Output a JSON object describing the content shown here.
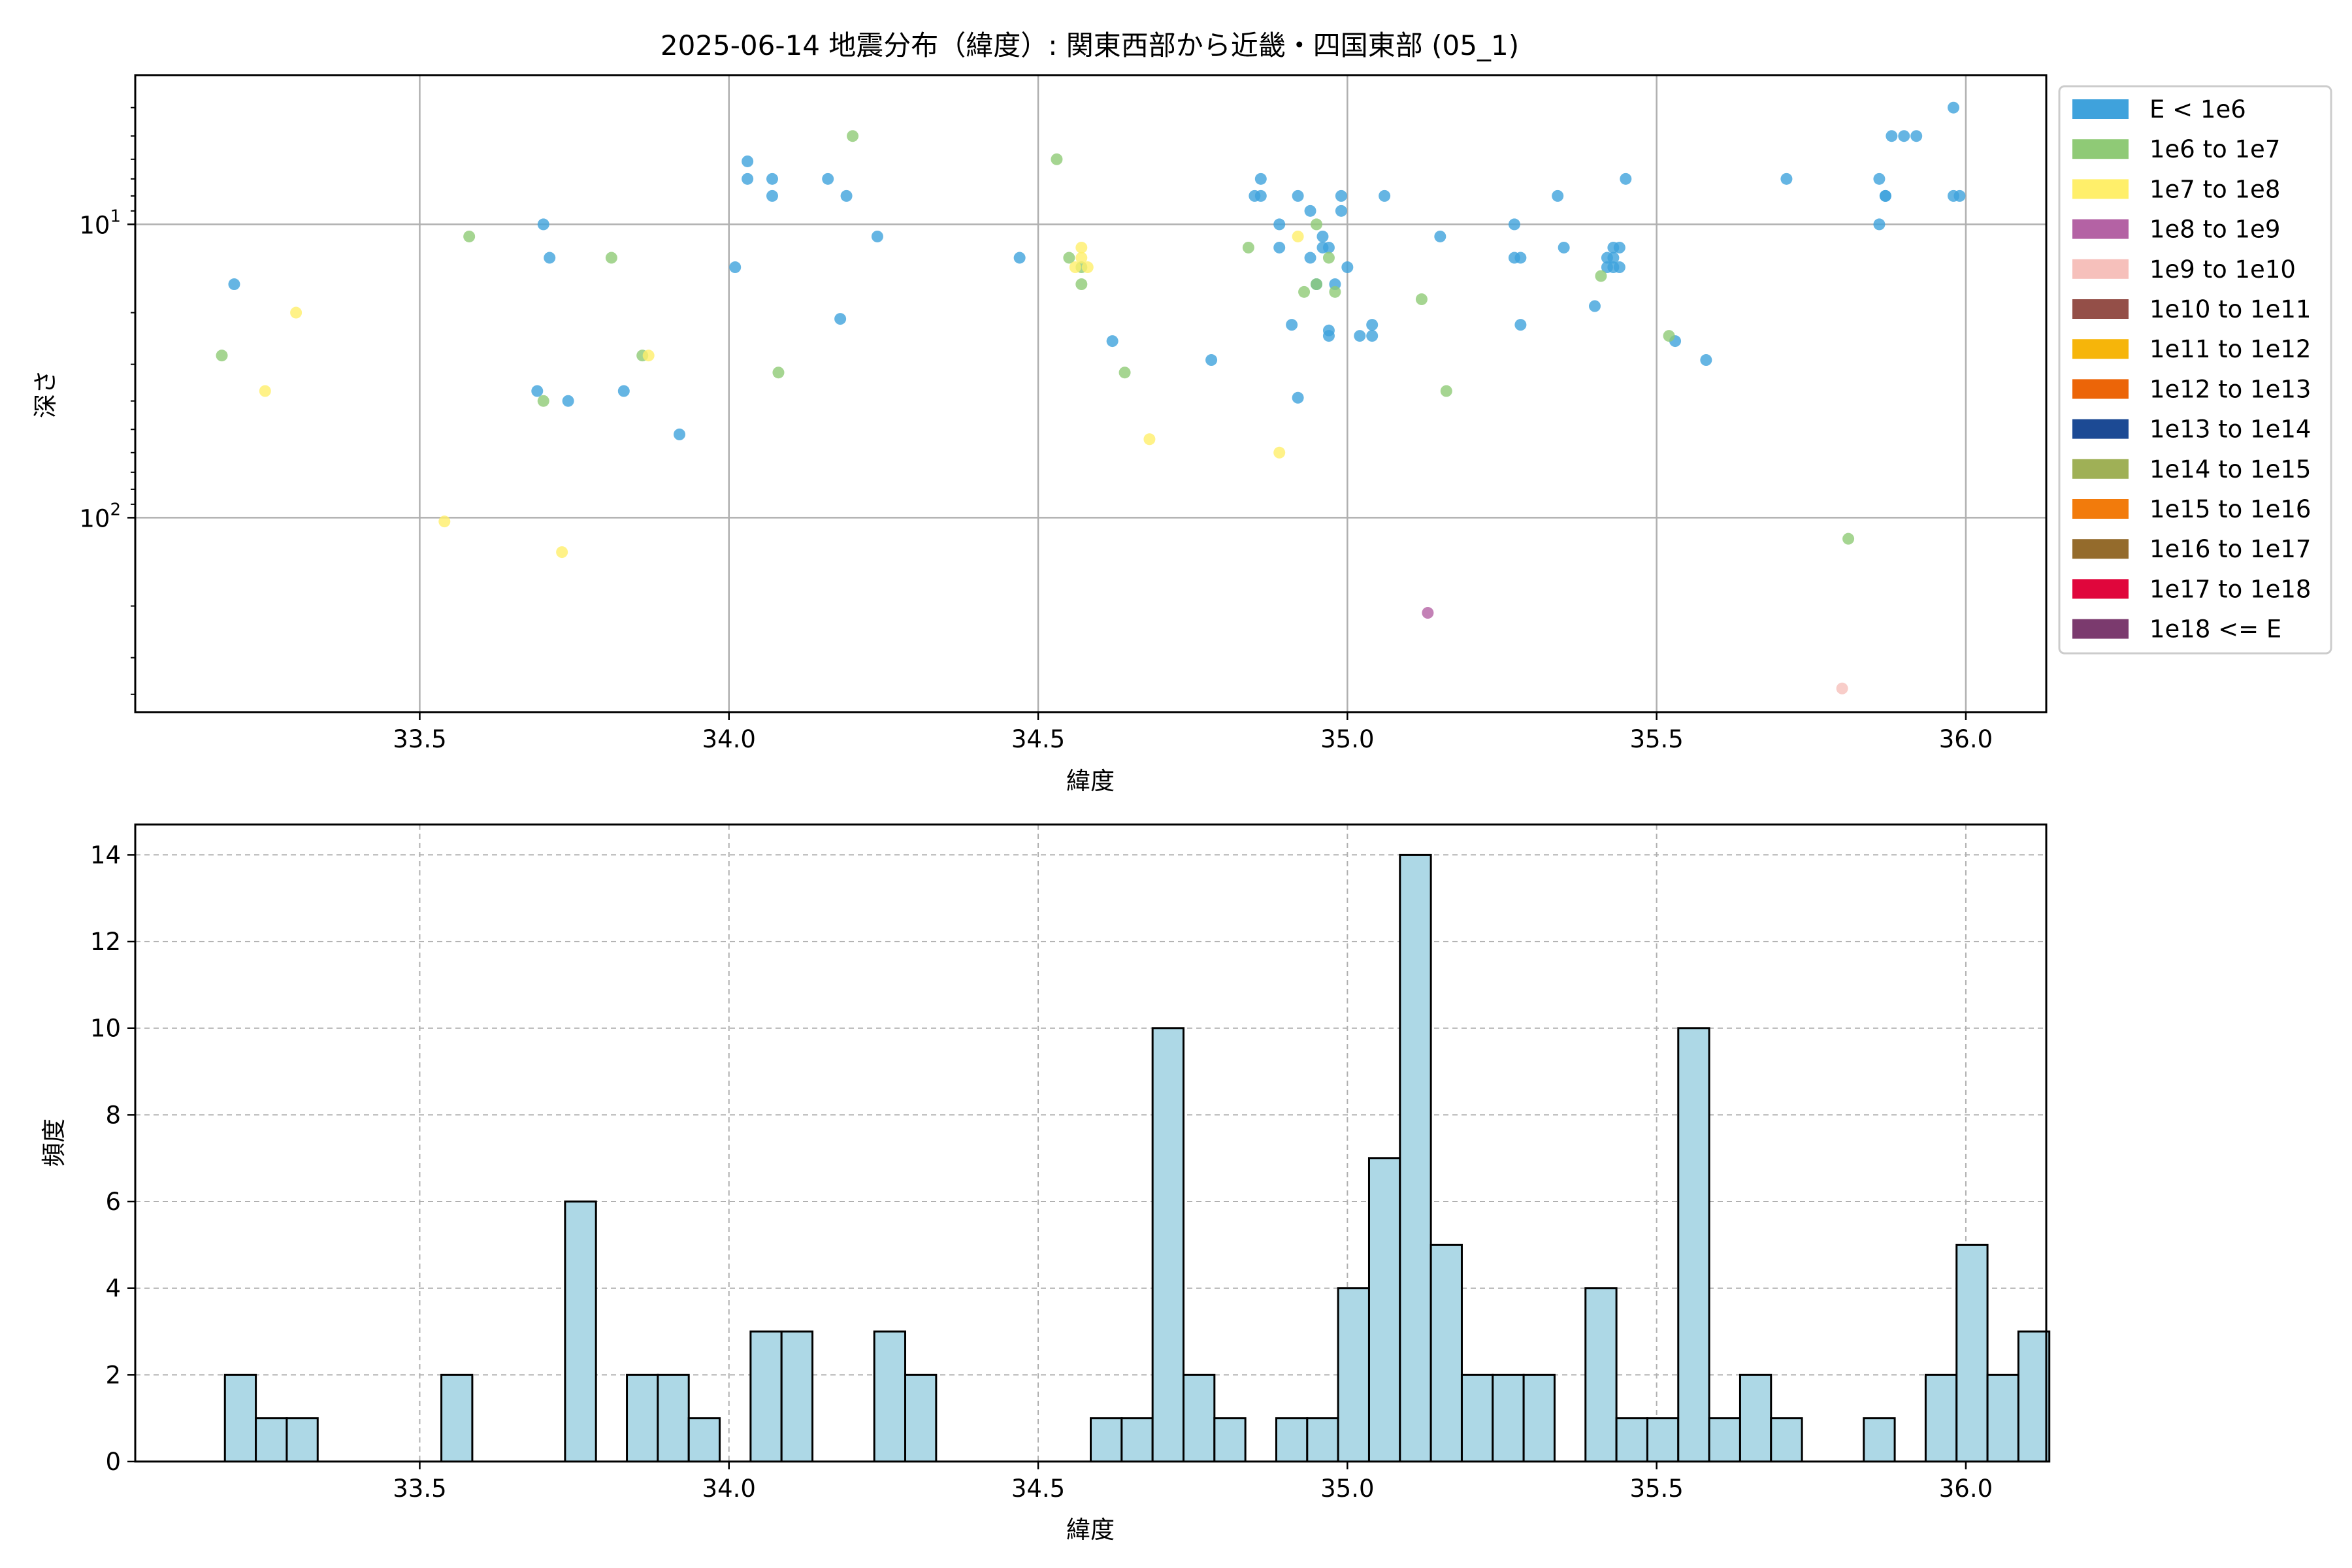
{
  "title": "2025-06-14 地震分布（緯度）: 関東西部から近畿・四国東部 (05_1)",
  "chart_data": [
    {
      "type": "scatter",
      "title": "2025-06-14 地震分布（緯度）: 関東西部から近畿・四国東部 (05_1)",
      "xlabel": "緯度",
      "ylabel": "深さ",
      "xlim": [
        33.04,
        36.13
      ],
      "ylim": [
        460,
        3.1
      ],
      "y_scale": "log",
      "y_inverted": true,
      "grid": true,
      "legend_position": "outside-right",
      "x_ticks": [
        "33.5",
        "34.0",
        "34.5",
        "35.0",
        "35.5",
        "36.0"
      ],
      "y_ticks": [
        {
          "value": 10,
          "base": "10",
          "exp": "1"
        },
        {
          "value": 100,
          "base": "10",
          "exp": "2"
        }
      ],
      "legend": [
        {
          "label": "E < 1e6",
          "color": "#3fa2dc"
        },
        {
          "label": "1e6 to 1e7",
          "color": "#8fca76"
        },
        {
          "label": "1e7 to 1e8",
          "color": "#ffef6a"
        },
        {
          "label": "1e8 to 1e9",
          "color": "#b462a4"
        },
        {
          "label": "1e9 to 1e10",
          "color": "#f6c0bb"
        },
        {
          "label": "1e10 to 1e11",
          "color": "#944f48"
        },
        {
          "label": "1e11 to 1e12",
          "color": "#f6b50a"
        },
        {
          "label": "1e12 to 1e13",
          "color": "#ec6508"
        },
        {
          "label": "1e13 to 1e14",
          "color": "#1c4a94"
        },
        {
          "label": "1e14 to 1e15",
          "color": "#9fb056"
        },
        {
          "label": "1e15 to 1e16",
          "color": "#f27b0c"
        },
        {
          "label": "1e16 to 1e17",
          "color": "#946b2c"
        },
        {
          "label": "1e17 to 1e18",
          "color": "#e0063c"
        },
        {
          "label": "1e18 <= E",
          "color": "#7b3a6e"
        }
      ],
      "series": [
        {
          "class": 0,
          "points": [
            [
              33.2,
              16
            ],
            [
              33.7,
              10
            ],
            [
              33.71,
              13
            ],
            [
              33.69,
              37
            ],
            [
              33.74,
              40
            ],
            [
              33.83,
              37
            ],
            [
              33.92,
              52
            ],
            [
              34.01,
              14
            ],
            [
              34.03,
              6.1
            ],
            [
              34.03,
              7.0
            ],
            [
              34.07,
              7.0
            ],
            [
              34.07,
              8.0
            ],
            [
              34.16,
              7.0
            ],
            [
              34.19,
              8.0
            ],
            [
              34.18,
              21
            ],
            [
              34.24,
              11
            ],
            [
              34.47,
              13
            ],
            [
              34.62,
              25
            ],
            [
              34.78,
              29
            ],
            [
              34.85,
              8.0
            ],
            [
              34.86,
              8.0
            ],
            [
              34.86,
              7.0
            ],
            [
              34.89,
              12
            ],
            [
              34.89,
              10
            ],
            [
              34.91,
              22
            ],
            [
              34.92,
              8.0
            ],
            [
              34.92,
              39
            ],
            [
              34.94,
              9.0
            ],
            [
              34.94,
              13
            ],
            [
              34.95,
              16
            ],
            [
              34.96,
              11
            ],
            [
              34.96,
              12
            ],
            [
              34.97,
              12
            ],
            [
              34.97,
              23
            ],
            [
              34.98,
              16
            ],
            [
              34.97,
              24
            ],
            [
              34.99,
              9.0
            ],
            [
              34.99,
              8.0
            ],
            [
              35.0,
              14
            ],
            [
              35.02,
              24
            ],
            [
              35.04,
              24
            ],
            [
              35.04,
              22
            ],
            [
              35.06,
              8.0
            ],
            [
              35.15,
              11
            ],
            [
              35.27,
              10
            ],
            [
              35.27,
              13
            ],
            [
              35.28,
              13
            ],
            [
              35.28,
              22
            ],
            [
              35.34,
              8.0
            ],
            [
              35.35,
              12
            ],
            [
              35.4,
              19
            ],
            [
              35.42,
              14
            ],
            [
              35.43,
              14
            ],
            [
              35.42,
              13
            ],
            [
              35.43,
              12
            ],
            [
              35.43,
              13
            ],
            [
              35.44,
              12
            ],
            [
              35.44,
              14
            ],
            [
              35.45,
              7.0
            ],
            [
              35.53,
              25
            ],
            [
              35.58,
              29
            ],
            [
              35.71,
              7.0
            ],
            [
              35.86,
              7.0
            ],
            [
              35.87,
              8.0
            ],
            [
              35.86,
              10
            ],
            [
              35.87,
              8.0
            ],
            [
              35.88,
              5.0
            ],
            [
              35.9,
              5.0
            ],
            [
              35.92,
              5.0
            ],
            [
              35.98,
              4.0
            ],
            [
              35.98,
              8.0
            ],
            [
              35.99,
              8.0
            ]
          ]
        },
        {
          "class": 1,
          "points": [
            [
              33.18,
              28
            ],
            [
              33.58,
              11
            ],
            [
              33.7,
              40
            ],
            [
              33.81,
              13
            ],
            [
              33.86,
              28
            ],
            [
              34.08,
              32
            ],
            [
              34.2,
              5.0
            ],
            [
              34.53,
              6.0
            ],
            [
              34.55,
              13
            ],
            [
              34.57,
              16
            ],
            [
              34.57,
              14
            ],
            [
              34.64,
              32
            ],
            [
              34.84,
              12
            ],
            [
              34.93,
              17
            ],
            [
              34.95,
              10
            ],
            [
              34.95,
              16
            ],
            [
              34.97,
              13
            ],
            [
              34.98,
              17
            ],
            [
              35.12,
              18
            ],
            [
              35.16,
              37
            ],
            [
              35.41,
              15
            ],
            [
              35.52,
              24
            ],
            [
              35.81,
              118
            ]
          ]
        },
        {
          "class": 2,
          "points": [
            [
              33.25,
              37
            ],
            [
              33.3,
              20
            ],
            [
              33.54,
              103
            ],
            [
              33.73,
              131
            ],
            [
              33.87,
              28
            ],
            [
              34.56,
              14
            ],
            [
              34.57,
              12
            ],
            [
              34.57,
              13
            ],
            [
              34.58,
              14
            ],
            [
              34.68,
              54
            ],
            [
              34.89,
              60
            ],
            [
              34.92,
              11
            ]
          ]
        },
        {
          "class": 3,
          "points": [
            [
              35.13,
              211
            ]
          ]
        },
        {
          "class": 4,
          "points": [
            [
              35.8,
              382
            ]
          ]
        }
      ]
    },
    {
      "type": "bar",
      "title": "",
      "xlabel": "緯度",
      "ylabel": "頻度",
      "xlim": [
        33.04,
        36.13
      ],
      "ylim": [
        0,
        14.7
      ],
      "grid": true,
      "bar_color": "#add8e6",
      "bar_edge_color": "#000000",
      "x_ticks": [
        "33.5",
        "34.0",
        "34.5",
        "35.0",
        "35.5",
        "36.0"
      ],
      "y_ticks": [
        "0",
        "2",
        "4",
        "6",
        "8",
        "10",
        "12",
        "14"
      ],
      "bin_start": 33.185,
      "bin_width": 0.05,
      "values": [
        2,
        1,
        1,
        0,
        0,
        0,
        0,
        2,
        0,
        0,
        0,
        6,
        0,
        2,
        2,
        1,
        0,
        3,
        3,
        0,
        0,
        3,
        2,
        0,
        0,
        0,
        0,
        0,
        1,
        1,
        10,
        2,
        1,
        0,
        1,
        1,
        4,
        7,
        14,
        5,
        2,
        2,
        2,
        0,
        4,
        1,
        1,
        10,
        1,
        2,
        1,
        0,
        0,
        1,
        0,
        2,
        5,
        2,
        3
      ]
    }
  ]
}
